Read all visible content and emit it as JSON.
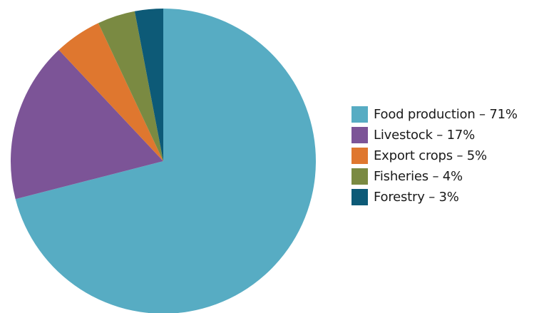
{
  "chart_data": {
    "type": "pie",
    "title": "",
    "legend_position": "right",
    "slices": [
      {
        "label": "Food production – 71%",
        "category": "Food production",
        "value": 71,
        "color": "#57acc3"
      },
      {
        "label": "Livestock – 17%",
        "category": "Livestock",
        "value": 17,
        "color": "#7c5497"
      },
      {
        "label": "Export crops – 5%",
        "category": "Export crops",
        "value": 5,
        "color": "#df772f"
      },
      {
        "label": "Fisheries – 4%",
        "category": "Fisheries",
        "value": 4,
        "color": "#7a8a42"
      },
      {
        "label": "Forestry – 3%",
        "category": "Forestry",
        "value": 3,
        "color": "#0d5a77"
      }
    ]
  }
}
